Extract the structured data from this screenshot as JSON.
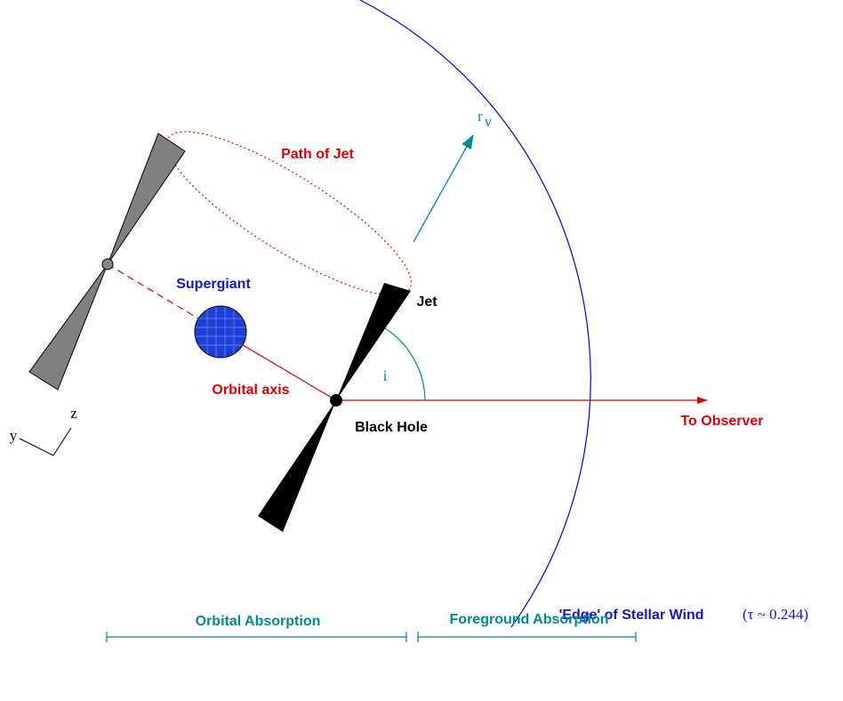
{
  "labels": {
    "path_of_jet": "Path of Jet",
    "supergiant": "Supergiant",
    "jet": "Jet",
    "inclination": "i",
    "orbital_axis": "Orbital axis",
    "black_hole": "Black Hole",
    "to_observer": "To Observer",
    "r_symbol": "r",
    "r_subscript": "ν",
    "axis_y": "y",
    "axis_z": "z",
    "stellar_wind_edge": "'Edge' of Stellar Wind",
    "optical_depth": "(τ ~ 0.244)",
    "orbital_absorption": "Orbital Absorption",
    "foreground_absorption": "Foreground Absorption"
  }
}
